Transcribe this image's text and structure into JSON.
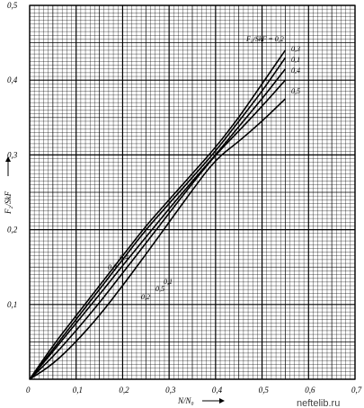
{
  "chart_data": {
    "type": "line",
    "xlabel": "N/N₀",
    "ylabel": "F₂/SkF",
    "legend_title": "F₀/SkF = 0,2",
    "xlim": [
      0,
      0.7
    ],
    "ylim": [
      0,
      0.5
    ],
    "x_ticks": [
      "0",
      "0,1",
      "0,2",
      "0,3",
      "0,4",
      "0,5",
      "0,6",
      "0,7"
    ],
    "y_ticks": [
      "0,1",
      "0,2",
      "0,3",
      "0,4",
      "0,5"
    ],
    "grid": true,
    "series": [
      {
        "name": "0,2",
        "x": [
          0,
          0.05,
          0.1,
          0.15,
          0.2,
          0.25,
          0.3,
          0.35,
          0.4,
          0.45,
          0.5,
          0.55
        ],
        "y": [
          0,
          0.045,
          0.085,
          0.125,
          0.165,
          0.205,
          0.24,
          0.275,
          0.31,
          0.35,
          0.395,
          0.44
        ]
      },
      {
        "name": "0,3",
        "x": [
          0,
          0.05,
          0.1,
          0.15,
          0.2,
          0.25,
          0.3,
          0.35,
          0.4,
          0.45,
          0.5,
          0.55
        ],
        "y": [
          0,
          0.04,
          0.08,
          0.12,
          0.16,
          0.2,
          0.235,
          0.27,
          0.305,
          0.345,
          0.385,
          0.43
        ]
      },
      {
        "name": "0,1",
        "x": [
          0,
          0.05,
          0.1,
          0.15,
          0.2,
          0.25,
          0.3,
          0.35,
          0.4,
          0.45,
          0.5,
          0.55
        ],
        "y": [
          0,
          0.037,
          0.075,
          0.113,
          0.152,
          0.19,
          0.228,
          0.265,
          0.3,
          0.338,
          0.375,
          0.415
        ]
      },
      {
        "name": "0,4",
        "x": [
          0,
          0.05,
          0.1,
          0.15,
          0.2,
          0.25,
          0.3,
          0.35,
          0.4,
          0.45,
          0.5,
          0.55
        ],
        "y": [
          0,
          0.03,
          0.065,
          0.102,
          0.142,
          0.182,
          0.222,
          0.262,
          0.3,
          0.332,
          0.365,
          0.4
        ]
      },
      {
        "name": "0,5",
        "x": [
          0,
          0.05,
          0.1,
          0.15,
          0.2,
          0.25,
          0.3,
          0.35,
          0.4,
          0.45,
          0.5,
          0.55
        ],
        "y": [
          0,
          0.02,
          0.05,
          0.085,
          0.125,
          0.167,
          0.21,
          0.253,
          0.294,
          0.318,
          0.345,
          0.375
        ]
      }
    ],
    "right_labels": [
      "0,3",
      "0,1",
      "0,4",
      "0,5"
    ],
    "mid_labels_upper": [
      "0,4",
      "0,3"
    ],
    "mid_labels_lower": [
      "0,1",
      "0,5",
      "0,2"
    ]
  },
  "watermark": "neftelib.ru"
}
